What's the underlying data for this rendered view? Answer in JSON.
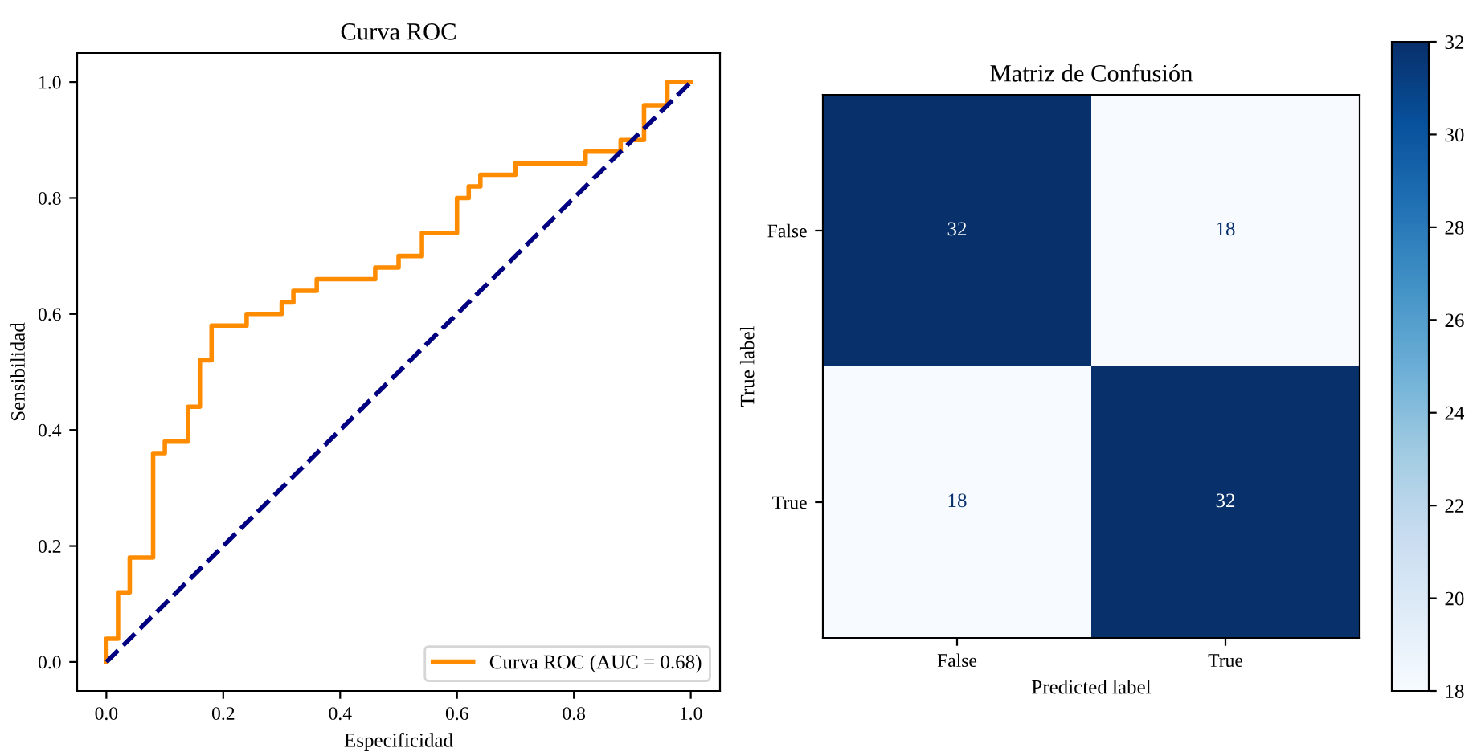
{
  "chart_data": [
    {
      "type": "line",
      "title": "Curva ROC",
      "xlabel": "Especificidad",
      "ylabel": "Sensibilidad",
      "xlim": [
        -0.05,
        1.05
      ],
      "ylim": [
        -0.05,
        1.05
      ],
      "xticks": [
        {
          "value": 0,
          "label": "0.0"
        },
        0.2,
        0.4,
        0.6,
        0.8,
        {
          "value": 1,
          "label": "1.0"
        }
      ],
      "yticks": [
        {
          "value": 0,
          "label": "0.0"
        },
        0.2,
        0.4,
        0.6,
        0.8,
        {
          "value": 1,
          "label": "1.0"
        }
      ],
      "grid": false,
      "legend": "bottom right",
      "series": [
        {
          "name": "Curva ROC (AUC = 0.68)",
          "color": "#ff8c00",
          "line_style": "solid",
          "x": [
            0,
            0,
            0.02,
            0.02,
            0.04,
            0.04,
            0.08,
            0.08,
            0.1,
            0.1,
            0.14,
            0.14,
            0.16,
            0.16,
            0.18,
            0.18,
            0.24,
            0.24,
            0.3,
            0.3,
            0.32,
            0.32,
            0.36,
            0.36,
            0.46,
            0.46,
            0.5,
            0.5,
            0.54,
            0.54,
            0.6,
            0.6,
            0.62,
            0.62,
            0.64,
            0.64,
            0.7,
            0.7,
            0.82,
            0.82,
            0.88,
            0.88,
            0.92,
            0.92,
            0.96,
            0.96,
            1.0
          ],
          "values": [
            0,
            0.04,
            0.04,
            0.12,
            0.12,
            0.18,
            0.18,
            0.36,
            0.36,
            0.38,
            0.38,
            0.44,
            0.44,
            0.52,
            0.52,
            0.58,
            0.58,
            0.6,
            0.6,
            0.62,
            0.62,
            0.64,
            0.64,
            0.66,
            0.66,
            0.68,
            0.68,
            0.7,
            0.7,
            0.74,
            0.74,
            0.8,
            0.8,
            0.82,
            0.82,
            0.84,
            0.84,
            0.86,
            0.86,
            0.88,
            0.88,
            0.9,
            0.9,
            0.96,
            0.96,
            1.0,
            1.0
          ]
        },
        {
          "color": "#000080",
          "line_style": "dashed",
          "x": [
            0,
            1
          ],
          "values": [
            0,
            1
          ]
        }
      ]
    },
    {
      "type": "heatmap",
      "title": "Matriz de Confusión",
      "xlabel": "Predicted label",
      "ylabel": "True label",
      "categories": [
        "False",
        "True"
      ],
      "y_categories": [
        "False",
        "True"
      ],
      "cells": [
        [
          32,
          18
        ],
        [
          18,
          32
        ]
      ],
      "data_labels": true,
      "clim": [
        18,
        32
      ],
      "cticks": [
        18,
        20,
        22,
        24,
        26,
        28,
        30,
        32
      ]
    }
  ]
}
